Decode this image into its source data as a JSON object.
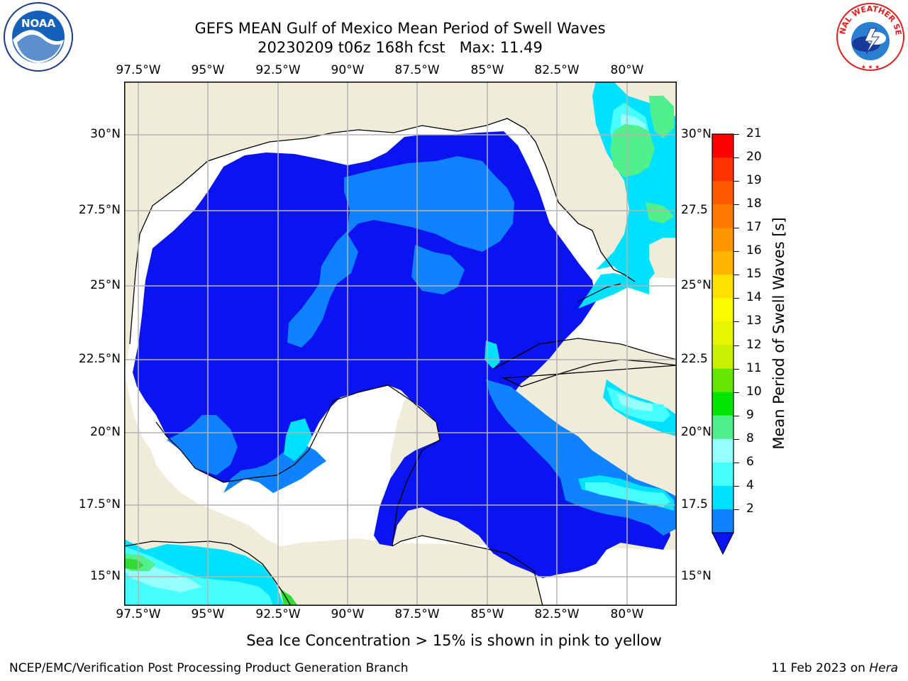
{
  "title": {
    "line1": "GEFS MEAN Gulf of Mexico Mean Period of Swell Waves",
    "line2": "20230209 t06z 168h fcst   Max: 11.49"
  },
  "map": {
    "lon_labels": [
      "97.5°W",
      "95°W",
      "92.5°W",
      "90°W",
      "87.5°W",
      "85°W",
      "82.5°W",
      "80°W"
    ],
    "lat_labels_left": [
      "30°N",
      "27.5°N",
      "25°N",
      "22.5°N",
      "20°N",
      "17.5°N",
      "15°N"
    ],
    "lat_labels_right": [
      "30°N",
      "27.5",
      "25°N",
      "22.5",
      "20°N",
      "17.5",
      "15°N"
    ],
    "land_color": "#efedda",
    "grid_color": "#b4b4b4",
    "layers": {
      "c2": "#0a14f0",
      "c4": "#0f82ff",
      "c6": "#00e1ff",
      "c8": "#46ffff",
      "c9": "#96ffff",
      "c10": "#50f08c",
      "c11": "#32dc32"
    }
  },
  "colorbar": {
    "label": "Mean Period of Swell Waves [s]",
    "ticks": [
      "21",
      "20",
      "19",
      "18",
      "17",
      "16",
      "15",
      "14",
      "13",
      "12",
      "11",
      "10",
      "9",
      "8",
      "6",
      "4",
      "2"
    ],
    "colors": [
      "#ff0000",
      "#ff3200",
      "#ff5a00",
      "#ff7800",
      "#ff9600",
      "#ffb400",
      "#ffe100",
      "#fafa00",
      "#e6f500",
      "#c8f000",
      "#64e600",
      "#00e600",
      "#50f08c",
      "#96ffff",
      "#46ffff",
      "#00e1ff",
      "#0f82ff"
    ],
    "extend_color": "#0a14f0"
  },
  "note": "Sea Ice Concentration > 15% is shown in pink to yellow",
  "footer": {
    "left": "NCEP/EMC/Verification Post Processing Product Generation Branch",
    "right_prefix": "11 Feb 2023 on ",
    "right_host": "Hera"
  },
  "logos": {
    "noaa_text": "NOAA",
    "nws_text": "NATIONAL WEATHER SERVICE"
  }
}
